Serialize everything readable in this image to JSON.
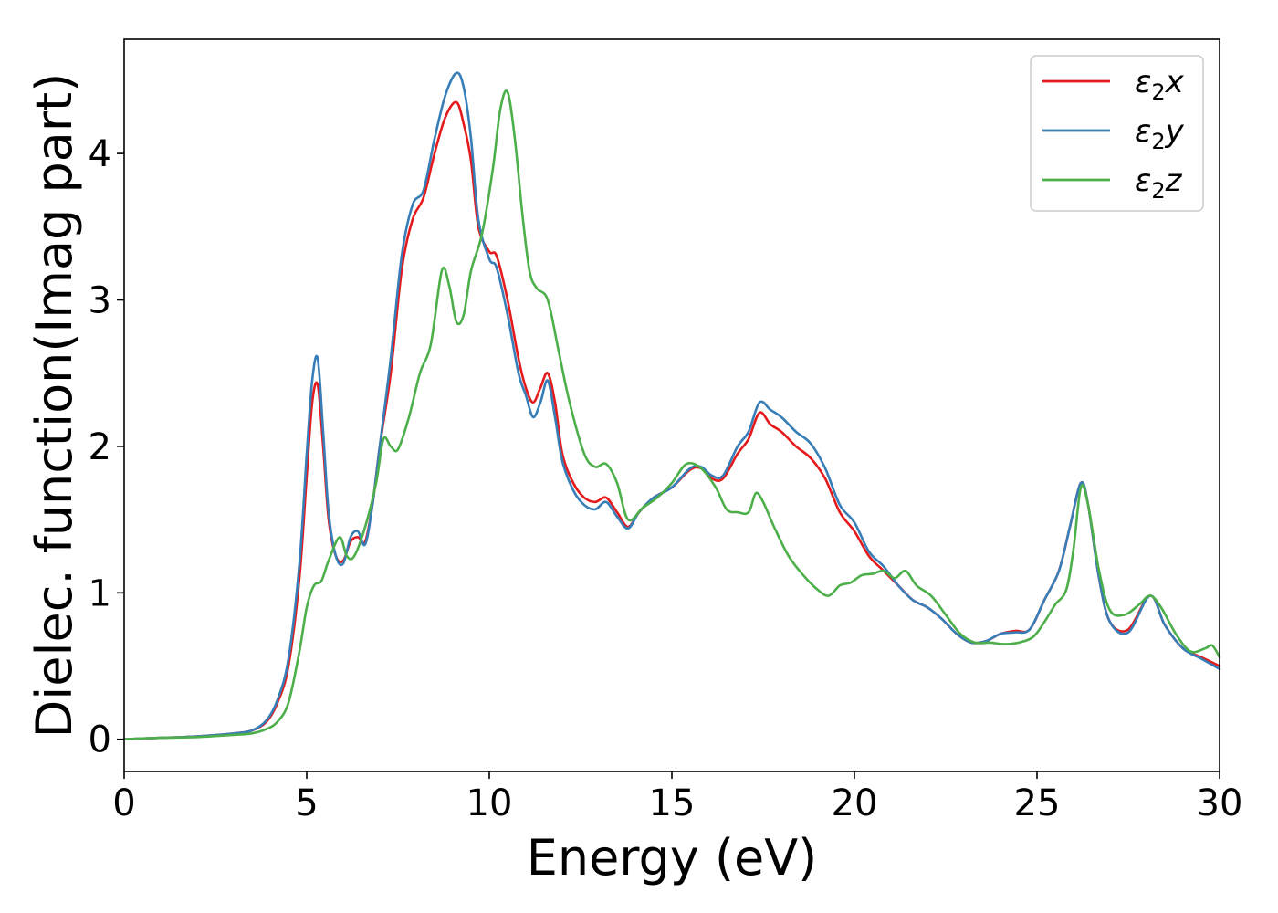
{
  "chart_data": {
    "type": "line",
    "title": "",
    "xlabel": "Energy (eV)",
    "ylabel": "Dielec. function(Imag part)",
    "xlim": [
      0,
      30
    ],
    "ylim": [
      -0.22,
      4.78
    ],
    "xticks": [
      0,
      5,
      10,
      15,
      20,
      25,
      30
    ],
    "xtick_labels": [
      "0",
      "5",
      "10",
      "15",
      "20",
      "25",
      "30"
    ],
    "yticks": [
      0,
      1,
      2,
      3,
      4
    ],
    "ytick_labels": [
      "0",
      "1",
      "2",
      "3",
      "4"
    ],
    "grid": false,
    "legend_position": "top-right",
    "series": [
      {
        "name": "ε₂x",
        "legend_base": "ε",
        "legend_sub": "2",
        "legend_var": "x",
        "color": "#e41a1c",
        "x": [
          0,
          1,
          2,
          3,
          3.5,
          3.9,
          4.2,
          4.5,
          4.8,
          5.0,
          5.15,
          5.3,
          5.45,
          5.6,
          5.8,
          6.0,
          6.2,
          6.4,
          6.6,
          6.8,
          7.0,
          7.3,
          7.6,
          7.9,
          8.2,
          8.5,
          8.8,
          9.1,
          9.3,
          9.5,
          9.7,
          10.0,
          10.2,
          10.5,
          10.8,
          11.0,
          11.2,
          11.4,
          11.6,
          11.8,
          12.0,
          12.3,
          12.6,
          12.9,
          13.2,
          13.5,
          13.8,
          14.1,
          14.5,
          15.0,
          15.5,
          15.8,
          16.1,
          16.4,
          16.8,
          17.1,
          17.4,
          17.7,
          18.0,
          18.4,
          18.8,
          19.2,
          19.6,
          20.0,
          20.4,
          20.8,
          21.2,
          21.6,
          22.0,
          22.4,
          22.8,
          23.2,
          23.6,
          24.0,
          24.4,
          24.8,
          25.2,
          25.6,
          25.9,
          26.2,
          26.4,
          26.7,
          27.0,
          27.5,
          28.1,
          28.5,
          29.0,
          29.5,
          30.0
        ],
        "y": [
          0.0,
          0.01,
          0.02,
          0.04,
          0.06,
          0.12,
          0.25,
          0.5,
          1.1,
          1.8,
          2.3,
          2.42,
          2.0,
          1.5,
          1.25,
          1.22,
          1.35,
          1.38,
          1.35,
          1.6,
          2.0,
          2.5,
          3.2,
          3.55,
          3.7,
          4.0,
          4.25,
          4.35,
          4.2,
          3.95,
          3.5,
          3.33,
          3.3,
          3.0,
          2.6,
          2.4,
          2.3,
          2.4,
          2.5,
          2.3,
          1.95,
          1.75,
          1.65,
          1.62,
          1.65,
          1.55,
          1.45,
          1.55,
          1.65,
          1.72,
          1.84,
          1.85,
          1.78,
          1.78,
          1.95,
          2.05,
          2.23,
          2.15,
          2.1,
          2.0,
          1.92,
          1.78,
          1.55,
          1.42,
          1.25,
          1.15,
          1.05,
          0.95,
          0.9,
          0.82,
          0.72,
          0.66,
          0.67,
          0.72,
          0.74,
          0.75,
          0.95,
          1.15,
          1.45,
          1.75,
          1.6,
          1.1,
          0.8,
          0.75,
          0.98,
          0.78,
          0.62,
          0.56,
          0.5
        ]
      },
      {
        "name": "ε₂y",
        "legend_base": "ε",
        "legend_sub": "2",
        "legend_var": "y",
        "color": "#377eb8",
        "x": [
          0,
          1,
          2,
          3,
          3.5,
          3.9,
          4.2,
          4.5,
          4.8,
          5.0,
          5.15,
          5.3,
          5.45,
          5.6,
          5.8,
          6.0,
          6.2,
          6.4,
          6.6,
          6.8,
          7.0,
          7.3,
          7.6,
          7.9,
          8.2,
          8.5,
          8.8,
          9.1,
          9.3,
          9.5,
          9.7,
          10.0,
          10.2,
          10.5,
          10.8,
          11.0,
          11.2,
          11.4,
          11.6,
          11.8,
          12.0,
          12.3,
          12.6,
          12.9,
          13.2,
          13.5,
          13.8,
          14.1,
          14.5,
          15.0,
          15.5,
          15.8,
          16.1,
          16.4,
          16.8,
          17.1,
          17.4,
          17.7,
          18.0,
          18.4,
          18.8,
          19.2,
          19.6,
          20.0,
          20.4,
          20.8,
          21.2,
          21.6,
          22.0,
          22.4,
          22.8,
          23.2,
          23.6,
          24.0,
          24.4,
          24.8,
          25.2,
          25.6,
          25.9,
          26.2,
          26.4,
          26.7,
          27.0,
          27.5,
          28.1,
          28.5,
          29.0,
          29.5,
          30.0
        ],
        "y": [
          0.0,
          0.01,
          0.02,
          0.04,
          0.06,
          0.13,
          0.27,
          0.55,
          1.2,
          1.95,
          2.45,
          2.6,
          2.1,
          1.55,
          1.25,
          1.2,
          1.38,
          1.42,
          1.33,
          1.6,
          2.0,
          2.6,
          3.3,
          3.65,
          3.75,
          4.1,
          4.4,
          4.55,
          4.45,
          4.1,
          3.55,
          3.28,
          3.22,
          2.9,
          2.5,
          2.35,
          2.2,
          2.3,
          2.45,
          2.2,
          1.9,
          1.7,
          1.6,
          1.57,
          1.62,
          1.52,
          1.44,
          1.55,
          1.65,
          1.72,
          1.85,
          1.86,
          1.8,
          1.8,
          2.0,
          2.1,
          2.3,
          2.25,
          2.2,
          2.1,
          2.02,
          1.85,
          1.6,
          1.48,
          1.28,
          1.18,
          1.05,
          0.95,
          0.9,
          0.82,
          0.72,
          0.66,
          0.67,
          0.72,
          0.73,
          0.75,
          0.95,
          1.15,
          1.45,
          1.75,
          1.6,
          1.1,
          0.8,
          0.73,
          0.98,
          0.78,
          0.62,
          0.55,
          0.48
        ]
      },
      {
        "name": "ε₂z",
        "legend_base": "ε",
        "legend_sub": "2",
        "legend_var": "z",
        "color": "#4daf4a",
        "x": [
          0,
          1,
          2,
          3,
          3.5,
          3.9,
          4.2,
          4.5,
          4.8,
          5.0,
          5.2,
          5.4,
          5.6,
          5.9,
          6.1,
          6.3,
          6.6,
          6.9,
          7.1,
          7.3,
          7.5,
          7.8,
          8.1,
          8.4,
          8.7,
          8.9,
          9.1,
          9.3,
          9.5,
          9.8,
          10.1,
          10.3,
          10.5,
          10.7,
          10.9,
          11.1,
          11.3,
          11.6,
          11.9,
          12.2,
          12.6,
          12.9,
          13.2,
          13.5,
          13.8,
          14.2,
          14.6,
          15.0,
          15.4,
          15.8,
          16.2,
          16.5,
          16.8,
          17.1,
          17.3,
          17.5,
          17.8,
          18.2,
          18.6,
          19.0,
          19.3,
          19.6,
          19.9,
          20.2,
          20.5,
          20.8,
          21.1,
          21.4,
          21.7,
          22.1,
          22.5,
          22.9,
          23.3,
          23.7,
          24.1,
          24.5,
          24.9,
          25.2,
          25.5,
          25.8,
          26.0,
          26.2,
          26.4,
          26.7,
          27.0,
          27.4,
          27.8,
          28.1,
          28.4,
          28.8,
          29.2,
          29.6,
          29.8,
          30.0
        ],
        "y": [
          0.0,
          0.01,
          0.015,
          0.03,
          0.04,
          0.07,
          0.12,
          0.25,
          0.6,
          0.9,
          1.05,
          1.08,
          1.22,
          1.38,
          1.25,
          1.25,
          1.45,
          1.75,
          2.05,
          2.0,
          1.98,
          2.2,
          2.5,
          2.7,
          3.2,
          3.1,
          2.85,
          2.9,
          3.2,
          3.45,
          3.9,
          4.3,
          4.42,
          4.1,
          3.6,
          3.2,
          3.08,
          3.0,
          2.65,
          2.3,
          1.95,
          1.86,
          1.88,
          1.75,
          1.5,
          1.58,
          1.65,
          1.75,
          1.88,
          1.85,
          1.72,
          1.57,
          1.55,
          1.55,
          1.68,
          1.62,
          1.45,
          1.25,
          1.12,
          1.02,
          0.98,
          1.05,
          1.07,
          1.12,
          1.13,
          1.15,
          1.1,
          1.15,
          1.05,
          0.98,
          0.85,
          0.72,
          0.66,
          0.66,
          0.65,
          0.66,
          0.7,
          0.8,
          0.92,
          1.02,
          1.3,
          1.72,
          1.6,
          1.15,
          0.88,
          0.85,
          0.92,
          0.98,
          0.9,
          0.72,
          0.6,
          0.62,
          0.64,
          0.56
        ]
      }
    ]
  }
}
